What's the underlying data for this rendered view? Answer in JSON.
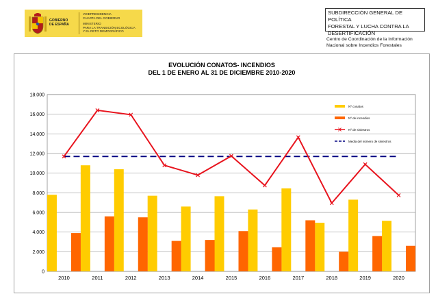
{
  "header": {
    "gov_lines": [
      "GOBIERNO",
      "DE ESPAÑA"
    ],
    "ministry_lines": [
      "VICEPRESIDENCIA",
      "CUARTA DEL GOBIERNO",
      "",
      "MINISTERIO",
      "PARA LA TRANSICIÓN ECOLÓGICA",
      "Y EL RETO DEMOGRÁFICO"
    ],
    "subdireccion_lines": [
      "SUBDIRECCIÓN GENERAL DE POLÍTICA",
      "FORESTAL Y LUCHA CONTRA LA",
      "DESERTIFICACIÓN"
    ],
    "centro_lines": [
      "Centro de Coordinación de la Información",
      "Nacional sobre Incendios Forestales"
    ],
    "colors": {
      "logo_band": "#f6d94a"
    }
  },
  "chart_data": {
    "type": "bar",
    "title_lines": [
      "EVOLUCIÓN CONATOS- INCENDIOS",
      "DEL 1 DE ENERO AL 31 DE DICIEMBRE 2010-2020"
    ],
    "categories": [
      "2010",
      "2011",
      "2012",
      "2013",
      "2014",
      "2015",
      "2016",
      "2017",
      "2018",
      "2019",
      "2020"
    ],
    "ylim": [
      0,
      18000
    ],
    "yticks": [
      0,
      2000,
      4000,
      6000,
      8000,
      10000,
      12000,
      14000,
      16000,
      18000
    ],
    "ytick_labels": [
      "0",
      "2.000",
      "4.000",
      "6.000",
      "8.000",
      "10.000",
      "12.000",
      "14.000",
      "16.000",
      "18.000"
    ],
    "series": [
      {
        "name": "Nº conatos",
        "kind": "bar",
        "color": "#ffcc00",
        "values": [
          7800,
          10800,
          10400,
          7700,
          6600,
          7650,
          6300,
          8450,
          4950,
          7300,
          5150
        ]
      },
      {
        "name": "Nº de incendios",
        "kind": "bar",
        "color": "#ff6600",
        "values": [
          3900,
          5600,
          5500,
          3100,
          3200,
          4100,
          2450,
          5200,
          2000,
          3600,
          2600
        ]
      },
      {
        "name": "Nº de siniestros",
        "kind": "line",
        "color": "#e8141e",
        "values": [
          11700,
          16400,
          15950,
          10800,
          9800,
          11750,
          8750,
          13650,
          6950,
          10900,
          7750
        ]
      },
      {
        "name": "Media del número de siniestros",
        "kind": "hline",
        "color": "#000080",
        "value": 11700
      }
    ],
    "legend_position": "top-right",
    "grid": "horizontal"
  }
}
